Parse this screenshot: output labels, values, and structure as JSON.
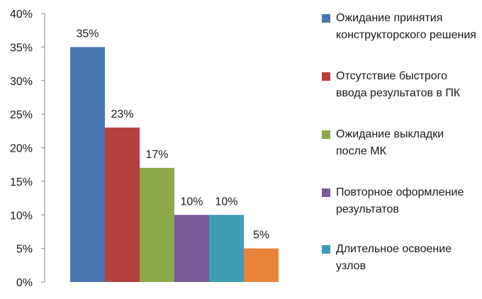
{
  "chart_data": {
    "type": "bar",
    "categories": [
      "Ожидание принятия конструкторского решения",
      "Отсутствие быстрого ввода результатов  в ПК",
      "Ожидание выкладки после МК",
      "Повторное оформление результатов",
      "Длительное освоение узлов",
      ""
    ],
    "values": [
      35,
      23,
      17,
      10,
      10,
      5
    ],
    "data_labels": [
      "35%",
      "23%",
      "17%",
      "10%",
      "10%",
      "5%"
    ],
    "colors": [
      "#4a76b0",
      "#b5403e",
      "#8ea94a",
      "#7a5a99",
      "#3e9cb4",
      "#e8843a"
    ],
    "ylim": [
      0,
      40
    ],
    "y_ticks": [
      "0%",
      "5%",
      "10%",
      "15%",
      "20%",
      "25%",
      "30%",
      "35%",
      "40%"
    ],
    "grid": false,
    "legend_position": "right",
    "legend": [
      {
        "label": "Ожидание принятия конструкторского решения",
        "color": "#4a76b0"
      },
      {
        "label": "Отсутствие быстрого ввода результатов  в ПК",
        "color": "#b5403e"
      },
      {
        "label": "Ожидание выкладки после МК",
        "color": "#8ea94a"
      },
      {
        "label": "Повторное оформление результатов",
        "color": "#7a5a99"
      },
      {
        "label": "Длительное освоение узлов",
        "color": "#3e9cb4"
      }
    ]
  }
}
